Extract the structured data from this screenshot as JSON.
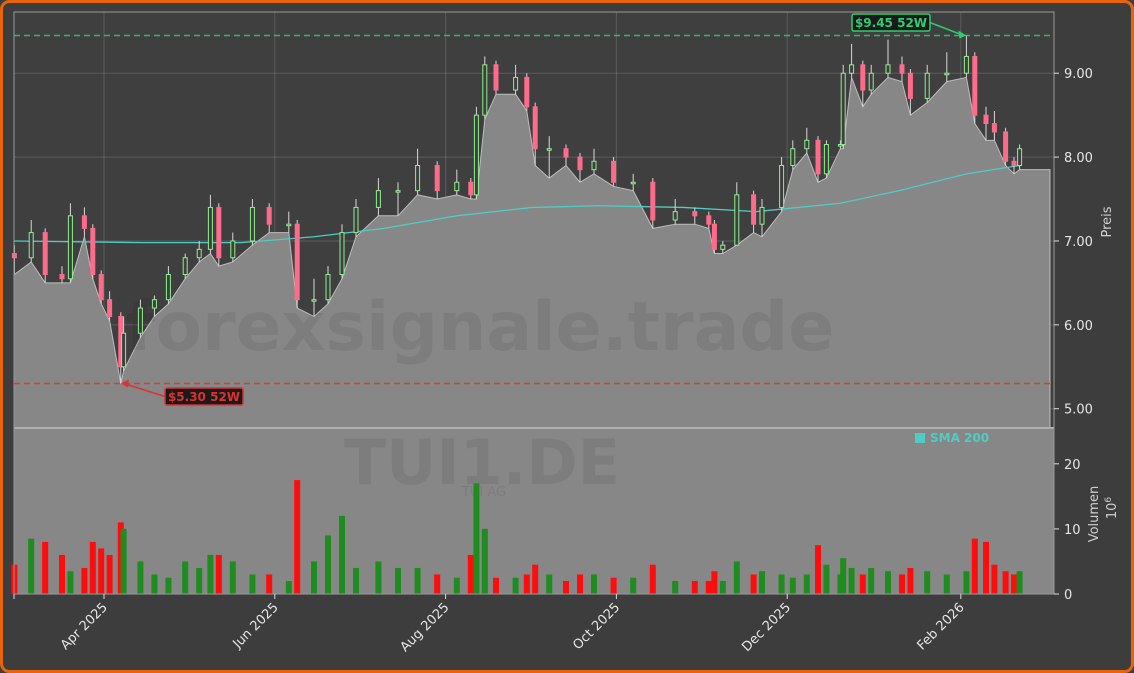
{
  "chart_data": [
    {
      "type": "candlestick",
      "ylabel": "Preis",
      "ylim": [
        4.77,
        9.73
      ],
      "yticks": [
        "5.00",
        "6.00",
        "7.00",
        "8.00",
        "9.00"
      ],
      "xticks": [
        {
          "date": "2025-04-01",
          "label": "Apr 2025"
        },
        {
          "date": "2025-06-01",
          "label": "Jun 2025"
        },
        {
          "date": "2025-08-01",
          "label": "Aug 2025"
        },
        {
          "date": "2025-10-01",
          "label": "Oct 2025"
        },
        {
          "date": "2025-12-01",
          "label": "Dec 2025"
        },
        {
          "date": "2026-02-01",
          "label": "Feb 2026"
        }
      ],
      "grid": true,
      "candle_fields": [
        "date",
        "open",
        "high",
        "low",
        "close"
      ],
      "candles": [
        [
          "2025-02-28",
          6.85,
          6.95,
          6.6,
          6.8
        ],
        [
          "2025-03-06",
          6.8,
          7.25,
          6.75,
          7.1
        ],
        [
          "2025-03-11",
          7.1,
          7.15,
          6.5,
          6.6
        ],
        [
          "2025-03-17",
          6.6,
          6.7,
          6.5,
          6.55
        ],
        [
          "2025-03-20",
          6.55,
          7.45,
          6.5,
          7.3
        ],
        [
          "2025-03-25",
          7.3,
          7.4,
          7.05,
          7.15
        ],
        [
          "2025-03-28",
          7.15,
          7.2,
          6.55,
          6.6
        ],
        [
          "2025-03-31",
          6.6,
          6.65,
          6.25,
          6.3
        ],
        [
          "2025-04-03",
          6.3,
          6.4,
          6.05,
          6.1
        ],
        [
          "2025-04-07",
          6.1,
          6.15,
          5.3,
          5.5
        ],
        [
          "2025-04-08",
          5.5,
          6.1,
          5.45,
          5.9
        ],
        [
          "2025-04-14",
          5.9,
          6.3,
          5.85,
          6.2
        ],
        [
          "2025-04-19",
          6.2,
          6.35,
          6.1,
          6.3
        ],
        [
          "2025-04-24",
          6.3,
          6.7,
          6.25,
          6.6
        ],
        [
          "2025-04-30",
          6.6,
          6.85,
          6.55,
          6.8
        ],
        [
          "2025-05-05",
          6.8,
          7.0,
          6.75,
          6.9
        ],
        [
          "2025-05-09",
          6.9,
          7.55,
          6.85,
          7.4
        ],
        [
          "2025-05-12",
          7.4,
          7.45,
          6.7,
          6.8
        ],
        [
          "2025-05-17",
          6.8,
          7.1,
          6.75,
          7.0
        ],
        [
          "2025-05-24",
          7.0,
          7.5,
          6.95,
          7.4
        ],
        [
          "2025-05-30",
          7.4,
          7.45,
          7.1,
          7.2
        ],
        [
          "2025-06-06",
          7.2,
          7.35,
          7.1,
          7.2
        ],
        [
          "2025-06-09",
          7.2,
          7.25,
          6.2,
          6.3
        ],
        [
          "2025-06-15",
          6.3,
          6.55,
          6.1,
          6.3
        ],
        [
          "2025-06-20",
          6.3,
          6.7,
          6.25,
          6.6
        ],
        [
          "2025-06-25",
          6.6,
          7.2,
          6.55,
          7.1
        ],
        [
          "2025-06-30",
          7.1,
          7.5,
          7.05,
          7.4
        ],
        [
          "2025-07-08",
          7.4,
          7.75,
          7.3,
          7.6
        ],
        [
          "2025-07-15",
          7.6,
          7.7,
          7.3,
          7.6
        ],
        [
          "2025-07-22",
          7.6,
          8.1,
          7.55,
          7.9
        ],
        [
          "2025-07-29",
          7.9,
          7.95,
          7.5,
          7.6
        ],
        [
          "2025-08-05",
          7.6,
          7.85,
          7.55,
          7.7
        ],
        [
          "2025-08-10",
          7.7,
          7.75,
          7.5,
          7.55
        ],
        [
          "2025-08-12",
          7.55,
          8.6,
          7.5,
          8.5
        ],
        [
          "2025-08-15",
          8.5,
          9.2,
          8.45,
          9.1
        ],
        [
          "2025-08-19",
          9.1,
          9.15,
          8.75,
          8.8
        ],
        [
          "2025-08-26",
          8.8,
          9.1,
          8.75,
          8.95
        ],
        [
          "2025-08-30",
          8.95,
          9.0,
          8.55,
          8.6
        ],
        [
          "2025-09-02",
          8.6,
          8.65,
          7.9,
          8.1
        ],
        [
          "2025-09-07",
          8.1,
          8.25,
          7.75,
          8.1
        ],
        [
          "2025-09-13",
          8.1,
          8.15,
          7.9,
          8.0
        ],
        [
          "2025-09-18",
          8.0,
          8.05,
          7.7,
          7.85
        ],
        [
          "2025-09-23",
          7.85,
          8.1,
          7.8,
          7.95
        ],
        [
          "2025-09-30",
          7.95,
          8.0,
          7.65,
          7.7
        ],
        [
          "2025-10-07",
          7.7,
          7.8,
          7.6,
          7.7
        ],
        [
          "2025-10-14",
          7.7,
          7.75,
          7.15,
          7.25
        ],
        [
          "2025-10-22",
          7.25,
          7.5,
          7.2,
          7.35
        ],
        [
          "2025-10-29",
          7.35,
          7.4,
          7.2,
          7.3
        ],
        [
          "2025-11-03",
          7.3,
          7.35,
          7.15,
          7.2
        ],
        [
          "2025-11-05",
          7.2,
          7.25,
          6.85,
          6.9
        ],
        [
          "2025-11-08",
          6.9,
          7.0,
          6.85,
          6.95
        ],
        [
          "2025-11-13",
          6.95,
          7.7,
          6.95,
          7.55
        ],
        [
          "2025-11-19",
          7.55,
          7.6,
          7.1,
          7.2
        ],
        [
          "2025-11-22",
          7.2,
          7.5,
          7.05,
          7.4
        ],
        [
          "2025-11-29",
          7.4,
          8.0,
          7.35,
          7.9
        ],
        [
          "2025-12-03",
          7.9,
          8.2,
          7.85,
          8.1
        ],
        [
          "2025-12-08",
          8.1,
          8.35,
          8.05,
          8.2
        ],
        [
          "2025-12-12",
          8.2,
          8.25,
          7.7,
          7.8
        ],
        [
          "2025-12-15",
          7.8,
          8.2,
          7.75,
          8.15
        ],
        [
          "2025-12-20",
          8.15,
          8.2,
          8.1,
          8.15
        ],
        [
          "2025-12-21",
          8.15,
          9.1,
          8.1,
          9.0
        ],
        [
          "2025-12-24",
          9.0,
          9.35,
          8.95,
          9.1
        ],
        [
          "2025-12-28",
          9.1,
          9.15,
          8.6,
          8.8
        ],
        [
          "2025-12-31",
          8.8,
          9.1,
          8.75,
          9.0
        ],
        [
          "2026-01-06",
          9.0,
          9.4,
          8.95,
          9.1
        ],
        [
          "2026-01-11",
          9.1,
          9.2,
          8.9,
          9.0
        ],
        [
          "2026-01-14",
          9.0,
          9.05,
          8.5,
          8.7
        ],
        [
          "2026-01-20",
          8.7,
          9.1,
          8.65,
          9.0
        ],
        [
          "2026-01-27",
          9.0,
          9.25,
          8.9,
          9.0
        ],
        [
          "2026-02-03",
          9.0,
          9.45,
          8.95,
          9.2
        ],
        [
          "2026-02-06",
          9.2,
          9.25,
          8.4,
          8.5
        ],
        [
          "2026-02-10",
          8.5,
          8.6,
          8.2,
          8.4
        ],
        [
          "2026-02-13",
          8.4,
          8.55,
          8.2,
          8.3
        ],
        [
          "2026-02-17",
          8.3,
          8.35,
          7.9,
          7.95
        ],
        [
          "2026-02-20",
          7.95,
          8.0,
          7.8,
          7.9
        ],
        [
          "2026-02-22",
          7.9,
          8.15,
          7.85,
          8.1
        ]
      ],
      "sma": {
        "name": "SMA 200",
        "color": "#4ecdc4",
        "points": [
          [
            "2025-02-28",
            7.0
          ],
          [
            "2025-04-15",
            6.98
          ],
          [
            "2025-05-20",
            6.98
          ],
          [
            "2025-06-15",
            7.05
          ],
          [
            "2025-07-10",
            7.15
          ],
          [
            "2025-08-05",
            7.3
          ],
          [
            "2025-09-01",
            7.4
          ],
          [
            "2025-09-25",
            7.42
          ],
          [
            "2025-10-25",
            7.4
          ],
          [
            "2025-11-20",
            7.35
          ],
          [
            "2025-12-20",
            7.45
          ],
          [
            "2026-01-10",
            7.6
          ],
          [
            "2026-02-03",
            7.8
          ],
          [
            "2026-02-22",
            7.9
          ]
        ]
      },
      "annotations": [
        {
          "label": "$9.45 52W",
          "value": 9.45,
          "date": "2026-02-03",
          "color": "#2ecc71"
        },
        {
          "label": "$5.30 52W",
          "value": 5.3,
          "date": "2025-04-07",
          "color": "#e03030"
        }
      ],
      "colors": {
        "up": "#90ee90",
        "down": "#ff6b8a",
        "area": "#878787",
        "panel": "#3f3f3f"
      }
    },
    {
      "type": "bar",
      "ylabel": "Volumen",
      "unit_label": "10",
      "unit_exponent": "6",
      "ylim": [
        0,
        25.5
      ],
      "yticks": [
        "0",
        "10",
        "20"
      ],
      "values": [
        4.5,
        8.5,
        8,
        6,
        3.5,
        4,
        8,
        7,
        6,
        11,
        10,
        5,
        3,
        2.5,
        5,
        4,
        6,
        6,
        5,
        3,
        3,
        2,
        17.5,
        5,
        9,
        12,
        4,
        5,
        4,
        4,
        3,
        2.5,
        6,
        17,
        10,
        2.5,
        2.5,
        3,
        4.5,
        3,
        2,
        3,
        3,
        2.5,
        2.5,
        4.5,
        2,
        2,
        2,
        3.5,
        2,
        5,
        3,
        3.5,
        3,
        2.5,
        3,
        7.5,
        4.5,
        3,
        5.5,
        4,
        3,
        4,
        3.5,
        3,
        4,
        3.5,
        3,
        3.5,
        8.5,
        8,
        4.5,
        3.5,
        3,
        3.5
      ],
      "colors": {
        "up": "#1e8c1e",
        "down": "#ff0d0d"
      }
    }
  ],
  "watermark": {
    "site": "forexsignale.trade",
    "ticker": "TUI1.DE",
    "company": "TUI AG"
  }
}
